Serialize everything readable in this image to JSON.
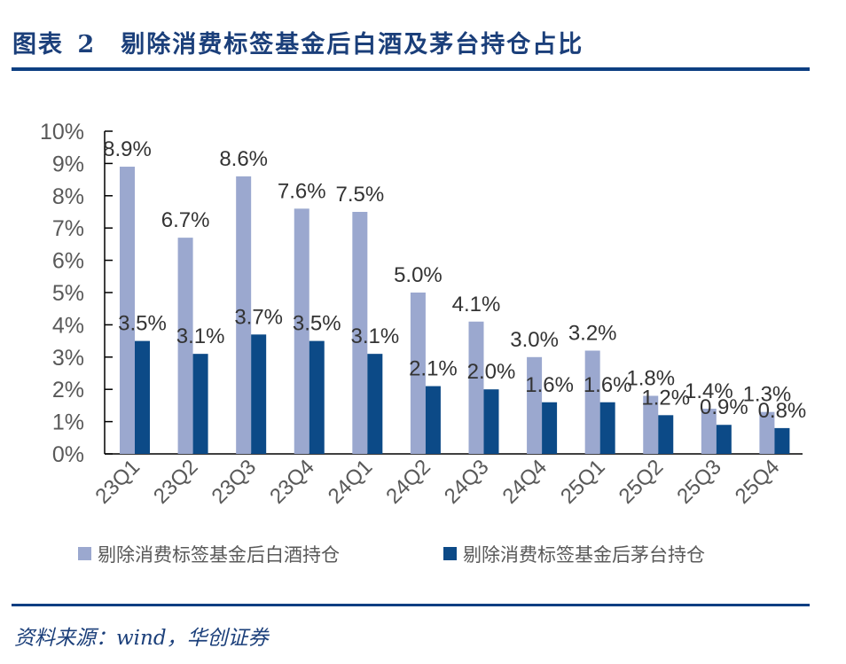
{
  "title": {
    "label": "图表",
    "number": "2",
    "text": "剔除消费标签基金后白酒及茅台持仓占比"
  },
  "source": "资料来源：wind，华创证券",
  "colors": {
    "liquor": "#9ba8cf",
    "moutai": "#0c4a87"
  },
  "chart_data": {
    "type": "bar",
    "categories": [
      "23Q1",
      "23Q2",
      "23Q3",
      "23Q4",
      "24Q1",
      "24Q2",
      "24Q3",
      "24Q4",
      "25Q1",
      "25Q2",
      "25Q3",
      "25Q4"
    ],
    "series": [
      {
        "name": "剔除消费标签基金后白酒持仓",
        "values": [
          8.9,
          6.7,
          8.6,
          7.6,
          7.5,
          5.0,
          4.1,
          3.0,
          3.2,
          1.8,
          1.4,
          1.3
        ]
      },
      {
        "name": "剔除消费标签基金后茅台持仓",
        "values": [
          3.5,
          3.1,
          3.7,
          3.5,
          3.1,
          2.1,
          2.0,
          1.6,
          1.6,
          1.2,
          0.9,
          0.8
        ]
      }
    ],
    "ylim": [
      0,
      10
    ],
    "yticks": [
      "0%",
      "1%",
      "2%",
      "3%",
      "4%",
      "5%",
      "6%",
      "7%",
      "8%",
      "9%",
      "10%"
    ],
    "legend": "bottom",
    "grid": false
  }
}
